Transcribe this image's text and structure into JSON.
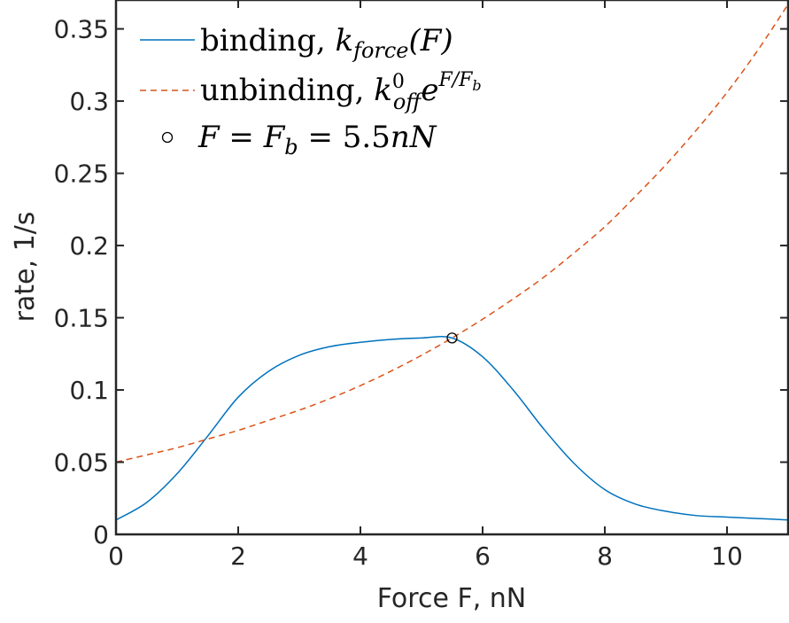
{
  "chart_data": {
    "type": "line",
    "xlabel": "Force F, nN",
    "ylabel": "rate, 1/s",
    "xlim": [
      0,
      11
    ],
    "ylim": [
      0,
      0.37
    ],
    "xticks": [
      0,
      2,
      4,
      6,
      8,
      10
    ],
    "xtick_labels": [
      "0",
      "2",
      "4",
      "6",
      "8",
      "10"
    ],
    "yticks": [
      0,
      0.05,
      0.1,
      0.15,
      0.2,
      0.25,
      0.3,
      0.35
    ],
    "ytick_labels": [
      "0",
      "0.05",
      "0.1",
      "0.15",
      "0.2",
      "0.25",
      "0.3",
      "0.35"
    ],
    "grid": false,
    "legend_position": "top-left",
    "series": [
      {
        "name": "binding, k_force(F)",
        "style": "solid",
        "color": "#0072BD",
        "x": [
          0,
          0.5,
          1,
          1.5,
          2,
          2.5,
          3,
          3.5,
          4,
          4.5,
          5,
          5.5,
          6,
          6.5,
          7,
          7.5,
          8,
          8.5,
          9,
          9.5,
          10,
          10.5,
          11
        ],
        "y": [
          0.01,
          0.022,
          0.042,
          0.068,
          0.095,
          0.113,
          0.124,
          0.13,
          0.133,
          0.135,
          0.136,
          0.136,
          0.123,
          0.1,
          0.073,
          0.049,
          0.031,
          0.021,
          0.016,
          0.013,
          0.012,
          0.011,
          0.01
        ]
      },
      {
        "name": "unbinding, k_off^0 e^(F/F_b)",
        "style": "dashed",
        "color": "#D95319",
        "x": [
          0,
          0.5,
          1,
          1.5,
          2,
          2.5,
          3,
          3.5,
          4,
          4.5,
          5,
          5.5,
          6,
          6.5,
          7,
          7.5,
          8,
          8.5,
          9,
          9.5,
          10,
          10.5,
          11
        ],
        "y": [
          0.05,
          0.055,
          0.06,
          0.066,
          0.072,
          0.079,
          0.086,
          0.094,
          0.103,
          0.113,
          0.124,
          0.136,
          0.149,
          0.163,
          0.178,
          0.195,
          0.213,
          0.234,
          0.256,
          0.28,
          0.306,
          0.335,
          0.367
        ]
      }
    ],
    "markers": [
      {
        "name": "F = F_b = 5.5nN",
        "x": 5.5,
        "y": 0.136,
        "shape": "circle"
      }
    ]
  },
  "legend": {
    "binding_text": "binding, ",
    "binding_k": "k",
    "binding_sub": "force",
    "binding_arg": "(F)",
    "unbinding_text": "unbinding, ",
    "unbinding_k": "k",
    "unbinding_sup0": "0",
    "unbinding_sub": "off",
    "unbinding_e": "e",
    "unbinding_exp": "F/F",
    "unbinding_exp_sub": "b",
    "marker_F": "F",
    "marker_eq1": " = ",
    "marker_Fb": "F",
    "marker_Fb_sub": "b",
    "marker_eq2": " = 5.5",
    "marker_unit": "nN"
  }
}
